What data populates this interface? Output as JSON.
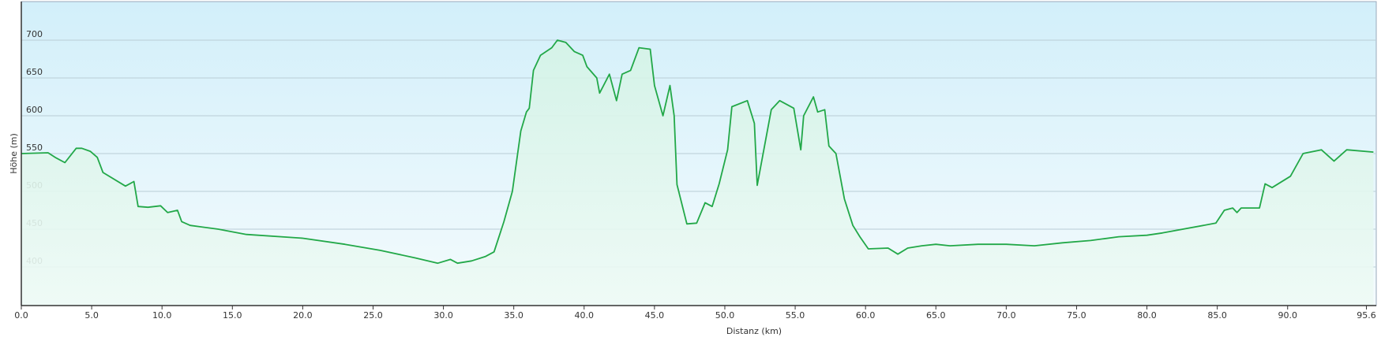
{
  "chart_data": {
    "type": "area",
    "xlabel": "Distanz  (km)",
    "ylabel": "Höhe (m)",
    "color": "#22a848",
    "grid": true,
    "x": [
      0,
      1.9,
      2.4,
      3.1,
      3.9,
      4.3,
      4.9,
      5.4,
      5.8,
      7.4,
      8.0,
      8.3,
      9.0,
      9.9,
      10.4,
      11.1,
      11.4,
      12,
      14,
      16,
      20,
      23,
      25.5,
      28,
      29.6,
      30.5,
      31,
      32,
      33,
      33.6,
      34.3,
      34.9,
      35.5,
      35.9,
      36.1,
      36.4,
      36.9,
      37.7,
      38.1,
      38.7,
      39.3,
      39.9,
      40.2,
      40.9,
      41.1,
      41.8,
      42.3,
      42.7,
      43.3,
      43.9,
      44.7,
      45.0,
      45.6,
      46.1,
      46.4,
      46.6,
      47.3,
      48.0,
      48.6,
      49.1,
      49.6,
      50.2,
      50.5,
      51.6,
      52.1,
      52.3,
      53.3,
      53.9,
      54.9,
      55.4,
      55.6,
      56.3,
      56.6,
      57.1,
      57.4,
      57.9,
      58.5,
      59.1,
      59.6,
      60.2,
      61.6,
      62.3,
      63,
      64,
      65,
      66,
      68,
      70,
      72,
      74,
      76,
      78,
      80,
      81.1,
      84.9,
      85.5,
      86.1,
      86.4,
      86.7,
      88.0,
      88.4,
      88.9,
      90.2,
      91.1,
      92.4,
      93.3,
      94.2,
      96.1
    ],
    "values": [
      550,
      551,
      545,
      538,
      557,
      557,
      553,
      545,
      525,
      507,
      513,
      480,
      479,
      481,
      472,
      475,
      460,
      455,
      450,
      443,
      438,
      430,
      422,
      412,
      405,
      410,
      405,
      408,
      414,
      420,
      460,
      500,
      580,
      605,
      610,
      660,
      680,
      690,
      700,
      697,
      685,
      680,
      665,
      650,
      630,
      655,
      620,
      655,
      660,
      690,
      688,
      640,
      600,
      640,
      600,
      509,
      457,
      458,
      485,
      480,
      510,
      555,
      612,
      620,
      590,
      508,
      608,
      620,
      610,
      555,
      600,
      625,
      605,
      608,
      560,
      550,
      490,
      455,
      440,
      424,
      425,
      417,
      425,
      428,
      430,
      428,
      430,
      430,
      428,
      432,
      435,
      440,
      442,
      445,
      458,
      475,
      478,
      472,
      478,
      478,
      510,
      505,
      520,
      550,
      555,
      540,
      555,
      552
    ],
    "xlim": [
      0,
      96.3
    ],
    "ylim": [
      349,
      751
    ],
    "yticks": [
      400,
      450,
      500,
      550,
      600,
      650,
      700
    ],
    "xticks": [
      {
        "value": 0,
        "label": "0.0"
      },
      {
        "value": 5,
        "label": "5.0"
      },
      {
        "value": 10,
        "label": "10.0"
      },
      {
        "value": 15,
        "label": "15.0"
      },
      {
        "value": 20,
        "label": "20.0"
      },
      {
        "value": 25,
        "label": "25.0"
      },
      {
        "value": 30,
        "label": "30.0"
      },
      {
        "value": 35,
        "label": "35.0"
      },
      {
        "value": 40,
        "label": "40.0"
      },
      {
        "value": 45,
        "label": "45.0"
      },
      {
        "value": 50,
        "label": "50.0"
      },
      {
        "value": 55,
        "label": "55.0"
      },
      {
        "value": 60,
        "label": "60.0"
      },
      {
        "value": 65,
        "label": "65.0"
      },
      {
        "value": 70,
        "label": "70.0"
      },
      {
        "value": 75,
        "label": "75.0"
      },
      {
        "value": 80,
        "label": "80.0"
      },
      {
        "value": 85,
        "label": "85.0"
      },
      {
        "value": 90,
        "label": "90.0"
      },
      {
        "value": 95.6,
        "label": "95.6"
      }
    ]
  }
}
